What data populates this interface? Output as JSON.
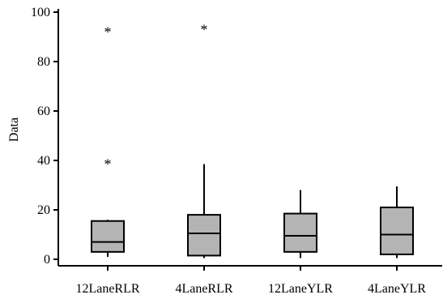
{
  "chart_data": {
    "type": "boxplot",
    "title": "",
    "xlabel": "",
    "ylabel": "Data",
    "ylim": [
      0,
      100
    ],
    "yticks": [
      0,
      20,
      40,
      60,
      80,
      100
    ],
    "grid": false,
    "legend": "none",
    "box_color": "#b4b4b4",
    "outlier_symbol": "*",
    "categories": [
      "12LaneRLR",
      "4LaneRLR",
      "12LaneYLR",
      "4LaneYLR"
    ],
    "boxes": [
      {
        "category": "12LaneRLR",
        "whisker_low": 1,
        "q1": 3,
        "median": 7,
        "q3": 15.5,
        "whisker_high": 16,
        "outliers": [
          39.5,
          93
        ]
      },
      {
        "category": "4LaneRLR",
        "whisker_low": 0.5,
        "q1": 1.5,
        "median": 10.5,
        "q3": 18,
        "whisker_high": 38.5,
        "outliers": [
          94
        ]
      },
      {
        "category": "12LaneYLR",
        "whisker_low": 0.5,
        "q1": 3,
        "median": 9.5,
        "q3": 18.5,
        "whisker_high": 28,
        "outliers": []
      },
      {
        "category": "4LaneYLR",
        "whisker_low": 0.5,
        "q1": 2,
        "median": 10,
        "q3": 21,
        "whisker_high": 29.5,
        "outliers": []
      }
    ]
  }
}
